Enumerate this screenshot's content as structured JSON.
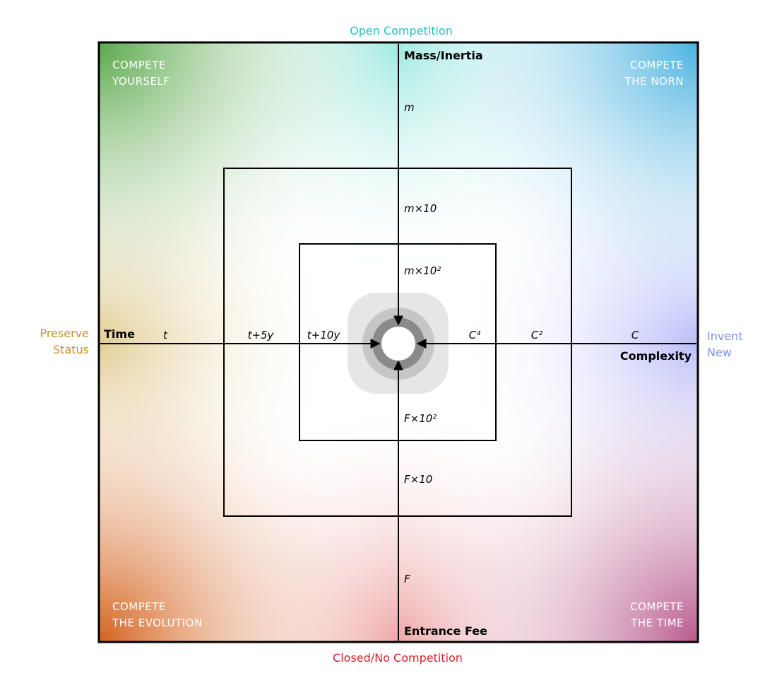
{
  "colors": {
    "open": "#1fc2c0",
    "closed": "#d91f26",
    "preserve": "#c8951e",
    "invent": "#7f8ff0",
    "corner_top_left": "#5aa84a",
    "corner_top_right": "#4ab2e0",
    "corner_bottom_left": "#d4621c",
    "corner_bottom_right": "#b85a8c",
    "left_mid": "#c9a33a",
    "right_mid": "#8c90f6",
    "top_mid": "#4fd8c8",
    "bottom_mid": "#e05a5a",
    "center_outer": "#e6e6e6",
    "center_middle": "#c6c6c6",
    "center_inner": "#8a8a8a"
  },
  "outer": {
    "top": "Open Competition",
    "bottom": "Closed/No Competition",
    "left": [
      "Preserve",
      "Status"
    ],
    "right": [
      "Invent",
      "New"
    ]
  },
  "corners": {
    "top_left": [
      "COMPETE",
      "YOURSELF"
    ],
    "top_right": [
      "COMPETE",
      "THE NORN"
    ],
    "bottom_left": [
      "COMPETE",
      "THE EVOLUTION"
    ],
    "bottom_right": [
      "COMPETE",
      "THE TIME"
    ]
  },
  "axes": {
    "top": "Mass/Inertia",
    "bottom": "Entrance Fee",
    "left": "Time",
    "right": "Complexity"
  },
  "ticks": {
    "top": [
      "m",
      "m×10",
      "m×10²"
    ],
    "bottom": [
      "F×10²",
      "F×10",
      "F"
    ],
    "left": [
      "t",
      "t+5y",
      "t+10y"
    ],
    "right": [
      "C⁴",
      "C²",
      "C"
    ]
  }
}
